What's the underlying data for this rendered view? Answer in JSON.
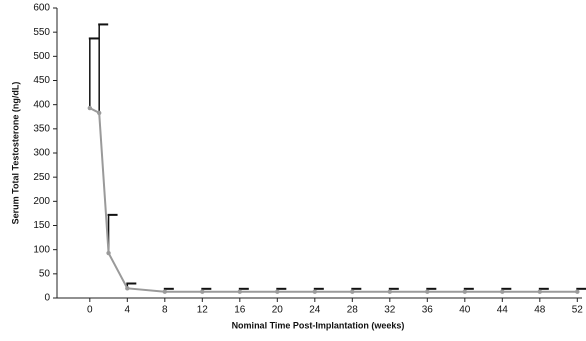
{
  "chart_data": {
    "type": "line",
    "x_label": "Nominal Time Post-Implantation (weeks)",
    "y_label": "Serum Total Testosterone (ng/dL)",
    "x": [
      0,
      1,
      2,
      4,
      8,
      12,
      16,
      20,
      24,
      28,
      32,
      36,
      40,
      44,
      48,
      52
    ],
    "values": [
      393,
      383,
      93,
      20,
      13,
      13,
      13,
      13,
      13,
      13,
      13,
      13,
      13,
      13,
      13,
      13
    ],
    "errors": [
      144,
      183,
      79,
      10,
      6,
      6,
      6,
      6,
      6,
      6,
      6,
      6,
      6,
      6,
      6,
      6
    ],
    "color": "#9a9a9a",
    "error_color": "#111111",
    "xlim": [
      -3.5,
      52.5
    ],
    "xticks": [
      0,
      4,
      8,
      12,
      16,
      20,
      24,
      28,
      32,
      36,
      40,
      44,
      48,
      52
    ],
    "ylim": [
      0,
      600
    ],
    "yticks": [
      0,
      50,
      100,
      150,
      200,
      250,
      300,
      350,
      400,
      450,
      500,
      550,
      600
    ]
  }
}
